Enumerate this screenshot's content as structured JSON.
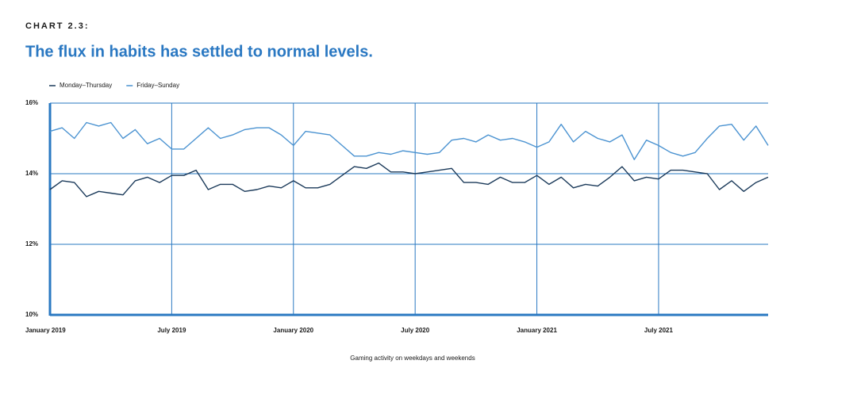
{
  "chart_data": {
    "type": "line",
    "kicker": "CHART 2.3:",
    "title": "The flux in habits has settled to normal levels.",
    "x_label": "Gaming activity on weekdays and weekends",
    "x": [
      2019.0,
      2019.05,
      2019.1,
      2019.15,
      2019.2,
      2019.25,
      2019.3,
      2019.35,
      2019.4,
      2019.45,
      2019.5,
      2019.55,
      2019.6,
      2019.65,
      2019.7,
      2019.75,
      2019.8,
      2019.85,
      2019.9,
      2019.95,
      2020.0,
      2020.05,
      2020.1,
      2020.15,
      2020.2,
      2020.25,
      2020.3,
      2020.35,
      2020.4,
      2020.45,
      2020.5,
      2020.55,
      2020.6,
      2020.65,
      2020.7,
      2020.75,
      2020.8,
      2020.85,
      2020.9,
      2020.95,
      2021.0,
      2021.05,
      2021.1,
      2021.15,
      2021.2,
      2021.25,
      2021.3,
      2021.35,
      2021.4,
      2021.45,
      2021.5,
      2021.55,
      2021.6,
      2021.65,
      2021.7,
      2021.75,
      2021.8,
      2021.85,
      2021.9,
      2021.95
    ],
    "series": [
      {
        "name": "Monday–Thursday",
        "color": "#1b3a5a",
        "values": [
          13.55,
          13.8,
          13.75,
          13.35,
          13.5,
          13.45,
          13.4,
          13.8,
          13.9,
          13.75,
          13.95,
          13.95,
          14.1,
          13.55,
          13.7,
          13.7,
          13.5,
          13.55,
          13.65,
          13.6,
          13.8,
          13.6,
          13.6,
          13.7,
          13.95,
          14.2,
          14.15,
          14.3,
          14.05,
          14.05,
          14.0,
          14.05,
          14.1,
          14.15,
          13.75,
          13.75,
          13.7,
          13.9,
          13.75,
          13.75,
          13.95,
          13.7,
          13.9,
          13.6,
          13.7,
          13.65,
          13.9,
          14.2,
          13.8,
          13.9,
          13.85,
          14.1,
          14.1,
          14.05,
          14.0,
          13.55,
          13.8,
          13.5,
          13.75,
          13.9
        ]
      },
      {
        "name": "Friday–Sunday",
        "color": "#4b93d1",
        "values": [
          15.2,
          15.3,
          15.0,
          15.45,
          15.35,
          15.45,
          15.0,
          15.25,
          14.85,
          15.0,
          14.7,
          14.7,
          15.0,
          15.3,
          15.0,
          15.1,
          15.25,
          15.3,
          15.3,
          15.1,
          14.8,
          15.2,
          15.15,
          15.1,
          14.8,
          14.5,
          14.5,
          14.6,
          14.55,
          14.65,
          14.6,
          14.55,
          14.6,
          14.95,
          15.0,
          14.9,
          15.1,
          14.95,
          15.0,
          14.9,
          14.75,
          14.9,
          15.4,
          14.9,
          15.2,
          15.0,
          14.9,
          15.1,
          14.4,
          14.95,
          14.8,
          14.6,
          14.5,
          14.6,
          15.0,
          15.35,
          15.4,
          14.95,
          15.35,
          14.8
        ]
      }
    ],
    "xlim": [
      2019,
      2021.95
    ],
    "xticks": [
      {
        "value": 2019,
        "label": "January 2019"
      },
      {
        "value": 2019.5,
        "label": "July 2019"
      },
      {
        "value": 2020,
        "label": "January 2020"
      },
      {
        "value": 2020.5,
        "label": "July 2020"
      },
      {
        "value": 2021,
        "label": "January 2021"
      },
      {
        "value": 2021.5,
        "label": "July 2021"
      }
    ],
    "ylim": [
      10,
      16
    ],
    "yticks": [
      {
        "value": 10,
        "label": "10%"
      },
      {
        "value": 12,
        "label": "12%"
      },
      {
        "value": 14,
        "label": "14%"
      },
      {
        "value": 16,
        "label": "16%"
      }
    ],
    "grid": true,
    "legend": "top-left",
    "axis_color": "#2a78c2"
  }
}
